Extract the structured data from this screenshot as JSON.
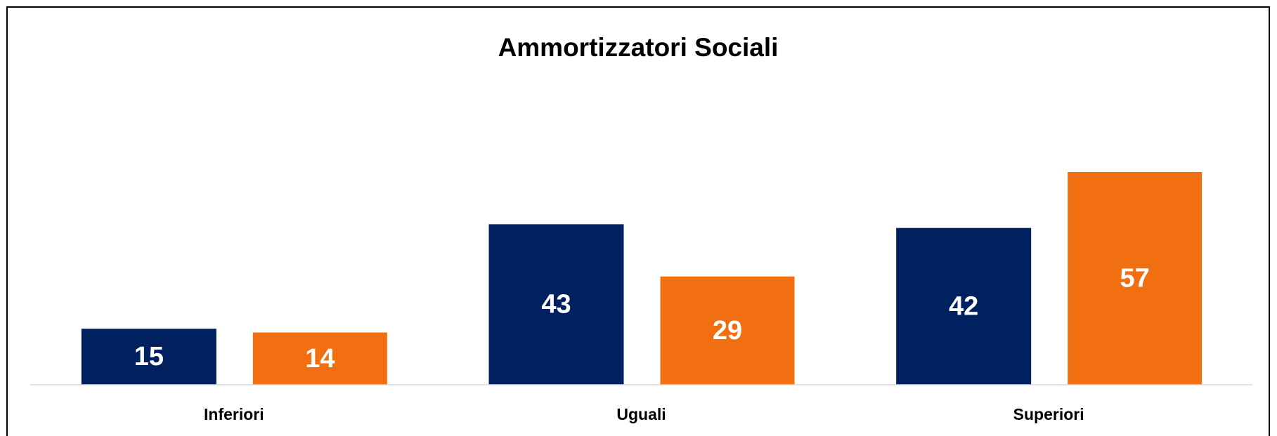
{
  "chart_data": {
    "type": "bar",
    "title": "Ammortizzatori Sociali",
    "categories": [
      "Inferiori",
      "Uguali",
      "Superiori"
    ],
    "series": [
      {
        "color": "#002060",
        "values": [
          15,
          43,
          42
        ]
      },
      {
        "color": "#f26f11",
        "values": [
          14,
          29,
          57
        ]
      }
    ],
    "ylim": [
      0,
      60
    ]
  }
}
